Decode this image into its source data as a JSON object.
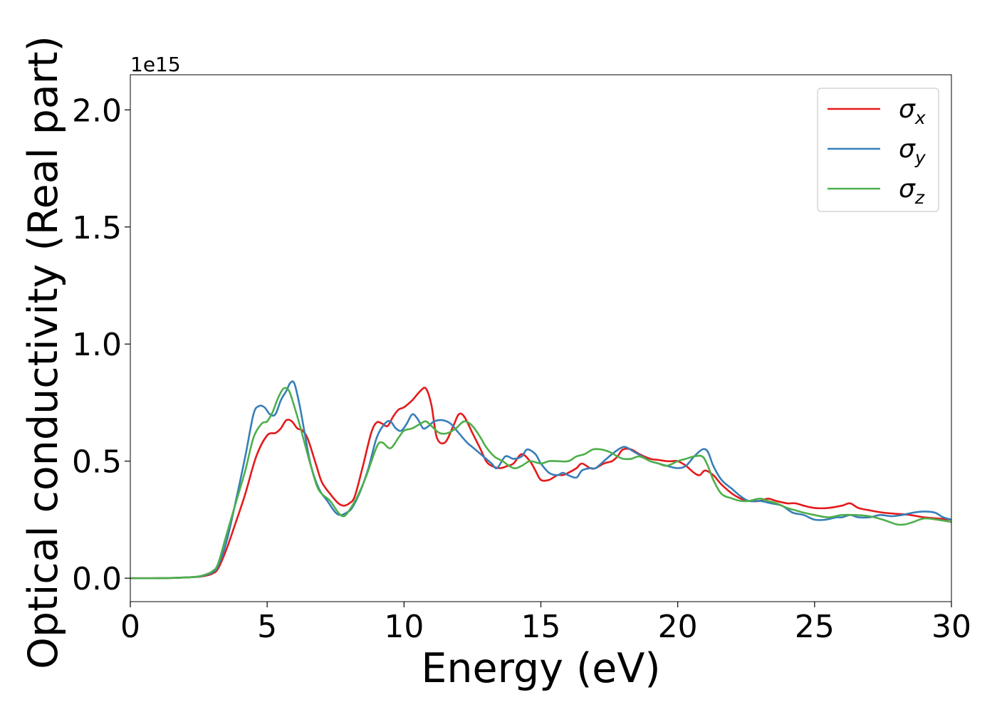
{
  "colors": {
    "sigma_x": "#e41a1c",
    "sigma_y": "#377eb8",
    "sigma_z": "#4daf4a",
    "frame": "#000000",
    "legend_border": "#cccccc"
  },
  "chart_data": {
    "type": "line",
    "title": "",
    "xlabel": "Energy (eV)",
    "ylabel": "Optical conductivity (Real part)",
    "y_offset_text": "1e15",
    "y_scale": 1000000000000000.0,
    "xlim": [
      0,
      30
    ],
    "ylim": [
      -0.1,
      2.15
    ],
    "xticks": [
      0,
      5,
      10,
      15,
      20,
      25,
      30
    ],
    "xtick_labels": [
      "0",
      "5",
      "10",
      "15",
      "20",
      "25",
      "30"
    ],
    "yticks": [
      0.0,
      0.5,
      1.0,
      1.5,
      2.0
    ],
    "ytick_labels": [
      "0.0",
      "0.5",
      "1.0",
      "1.5",
      "2.0"
    ],
    "grid": false,
    "legend_position": "top-right",
    "series": [
      {
        "name": "σx",
        "legend_symbol": "σ",
        "legend_subscript": "x",
        "color": "#e41a1c",
        "x": [
          0,
          1,
          2,
          2.5,
          2.8,
          3.0,
          3.2,
          3.5,
          3.8,
          4.2,
          4.6,
          5.0,
          5.3,
          5.5,
          5.7,
          5.9,
          6.1,
          6.3,
          6.5,
          6.8,
          7.0,
          7.3,
          7.6,
          7.8,
          8.0,
          8.2,
          8.5,
          8.8,
          9.0,
          9.2,
          9.4,
          9.6,
          9.8,
          10.0,
          10.3,
          10.6,
          10.8,
          11.0,
          11.2,
          11.5,
          11.8,
          12.0,
          12.2,
          12.5,
          12.8,
          13.0,
          13.2,
          13.5,
          13.8,
          14.0,
          14.3,
          14.6,
          14.8,
          15.0,
          15.3,
          15.6,
          15.8,
          16.0,
          16.3,
          16.5,
          16.8,
          17.0,
          17.3,
          17.6,
          17.8,
          18.0,
          18.3,
          18.6,
          19.0,
          19.3,
          19.6,
          19.8,
          20.0,
          20.3,
          20.6,
          20.8,
          21.0,
          21.3,
          21.6,
          22.0,
          22.3,
          22.6,
          23.0,
          23.3,
          23.6,
          24.0,
          24.3,
          24.6,
          25.0,
          25.5,
          26.0,
          26.3,
          26.6,
          27.0,
          27.5,
          28.0,
          28.5,
          29.0,
          29.5,
          30.0
        ],
        "values": [
          0.0,
          0.0,
          0.003,
          0.006,
          0.012,
          0.02,
          0.04,
          0.12,
          0.22,
          0.36,
          0.52,
          0.61,
          0.62,
          0.64,
          0.675,
          0.67,
          0.64,
          0.63,
          0.59,
          0.48,
          0.41,
          0.36,
          0.32,
          0.31,
          0.32,
          0.35,
          0.48,
          0.62,
          0.665,
          0.66,
          0.65,
          0.69,
          0.72,
          0.73,
          0.76,
          0.8,
          0.81,
          0.74,
          0.6,
          0.58,
          0.65,
          0.7,
          0.69,
          0.62,
          0.55,
          0.5,
          0.48,
          0.47,
          0.48,
          0.49,
          0.53,
          0.5,
          0.46,
          0.42,
          0.42,
          0.44,
          0.44,
          0.45,
          0.47,
          0.49,
          0.47,
          0.47,
          0.49,
          0.5,
          0.52,
          0.55,
          0.55,
          0.53,
          0.51,
          0.505,
          0.5,
          0.5,
          0.5,
          0.48,
          0.45,
          0.44,
          0.46,
          0.44,
          0.4,
          0.36,
          0.34,
          0.33,
          0.33,
          0.34,
          0.33,
          0.32,
          0.32,
          0.31,
          0.3,
          0.3,
          0.31,
          0.32,
          0.3,
          0.29,
          0.28,
          0.275,
          0.27,
          0.26,
          0.255,
          0.25
        ]
      },
      {
        "name": "σy",
        "legend_symbol": "σ",
        "legend_subscript": "y",
        "color": "#377eb8",
        "x": [
          0,
          1,
          2,
          2.5,
          2.8,
          3.0,
          3.2,
          3.5,
          3.8,
          4.2,
          4.5,
          4.7,
          4.9,
          5.1,
          5.3,
          5.5,
          5.7,
          5.85,
          6.0,
          6.2,
          6.4,
          6.6,
          6.9,
          7.2,
          7.5,
          7.7,
          7.9,
          8.1,
          8.4,
          8.7,
          9.0,
          9.3,
          9.5,
          9.7,
          9.9,
          10.1,
          10.3,
          10.5,
          10.7,
          10.9,
          11.1,
          11.4,
          11.7,
          12.0,
          12.3,
          12.6,
          12.9,
          13.2,
          13.4,
          13.7,
          14.0,
          14.3,
          14.5,
          14.8,
          15.0,
          15.3,
          15.6,
          15.8,
          16.0,
          16.3,
          16.5,
          16.8,
          17.0,
          17.3,
          17.6,
          17.9,
          18.1,
          18.4,
          18.7,
          19.0,
          19.3,
          19.6,
          20.0,
          20.3,
          20.6,
          20.9,
          21.1,
          21.3,
          21.6,
          22.0,
          22.3,
          22.6,
          23.0,
          23.4,
          23.8,
          24.2,
          24.6,
          25.0,
          25.4,
          25.8,
          26.0,
          26.3,
          26.6,
          27.0,
          27.4,
          27.8,
          28.2,
          28.6,
          29.0,
          29.4,
          29.7,
          30.0
        ],
        "values": [
          0.0,
          0.0,
          0.003,
          0.007,
          0.015,
          0.025,
          0.05,
          0.15,
          0.3,
          0.52,
          0.7,
          0.735,
          0.73,
          0.7,
          0.7,
          0.76,
          0.8,
          0.835,
          0.83,
          0.73,
          0.6,
          0.48,
          0.38,
          0.33,
          0.28,
          0.27,
          0.28,
          0.3,
          0.37,
          0.47,
          0.6,
          0.66,
          0.67,
          0.64,
          0.63,
          0.66,
          0.7,
          0.68,
          0.64,
          0.65,
          0.67,
          0.675,
          0.66,
          0.62,
          0.58,
          0.55,
          0.52,
          0.49,
          0.47,
          0.52,
          0.51,
          0.52,
          0.55,
          0.53,
          0.49,
          0.45,
          0.44,
          0.45,
          0.44,
          0.43,
          0.46,
          0.47,
          0.47,
          0.5,
          0.53,
          0.555,
          0.56,
          0.54,
          0.52,
          0.5,
          0.49,
          0.48,
          0.47,
          0.48,
          0.52,
          0.55,
          0.54,
          0.48,
          0.42,
          0.38,
          0.35,
          0.33,
          0.33,
          0.32,
          0.31,
          0.28,
          0.27,
          0.25,
          0.25,
          0.26,
          0.26,
          0.27,
          0.26,
          0.26,
          0.27,
          0.265,
          0.27,
          0.28,
          0.285,
          0.28,
          0.26,
          0.25
        ]
      },
      {
        "name": "σz",
        "legend_symbol": "σ",
        "legend_subscript": "z",
        "color": "#4daf4a",
        "x": [
          0,
          1,
          2,
          2.5,
          2.8,
          3.0,
          3.2,
          3.5,
          3.8,
          4.2,
          4.5,
          4.8,
          5.0,
          5.2,
          5.4,
          5.6,
          5.8,
          6.0,
          6.2,
          6.5,
          6.8,
          7.0,
          7.3,
          7.6,
          7.8,
          8.0,
          8.3,
          8.6,
          9.0,
          9.2,
          9.5,
          9.8,
          10.0,
          10.3,
          10.6,
          10.8,
          11.0,
          11.3,
          11.6,
          11.9,
          12.2,
          12.5,
          12.8,
          13.0,
          13.3,
          13.6,
          14.0,
          14.3,
          14.6,
          15.0,
          15.3,
          15.6,
          16.0,
          16.3,
          16.6,
          16.9,
          17.2,
          17.5,
          17.8,
          18.0,
          18.3,
          18.6,
          19.0,
          19.3,
          19.6,
          20.0,
          20.3,
          20.6,
          20.9,
          21.1,
          21.3,
          21.6,
          22.0,
          22.3,
          22.6,
          23.0,
          23.3,
          23.6,
          24.0,
          24.3,
          24.6,
          25.0,
          25.5,
          26.0,
          26.5,
          27.0,
          27.5,
          28.0,
          28.3,
          28.6,
          29.0,
          29.5,
          30.0
        ],
        "values": [
          0.0,
          0.0,
          0.003,
          0.008,
          0.018,
          0.03,
          0.06,
          0.18,
          0.3,
          0.46,
          0.6,
          0.66,
          0.67,
          0.71,
          0.77,
          0.81,
          0.8,
          0.73,
          0.65,
          0.52,
          0.4,
          0.36,
          0.33,
          0.28,
          0.265,
          0.29,
          0.35,
          0.43,
          0.56,
          0.58,
          0.555,
          0.6,
          0.63,
          0.64,
          0.66,
          0.67,
          0.65,
          0.62,
          0.62,
          0.64,
          0.67,
          0.65,
          0.6,
          0.56,
          0.52,
          0.5,
          0.47,
          0.48,
          0.5,
          0.49,
          0.5,
          0.5,
          0.5,
          0.52,
          0.53,
          0.55,
          0.55,
          0.54,
          0.52,
          0.51,
          0.51,
          0.52,
          0.5,
          0.49,
          0.48,
          0.5,
          0.51,
          0.52,
          0.52,
          0.48,
          0.42,
          0.36,
          0.34,
          0.33,
          0.33,
          0.34,
          0.33,
          0.32,
          0.3,
          0.29,
          0.28,
          0.27,
          0.26,
          0.27,
          0.27,
          0.265,
          0.25,
          0.23,
          0.23,
          0.24,
          0.255,
          0.25,
          0.24
        ]
      }
    ]
  }
}
